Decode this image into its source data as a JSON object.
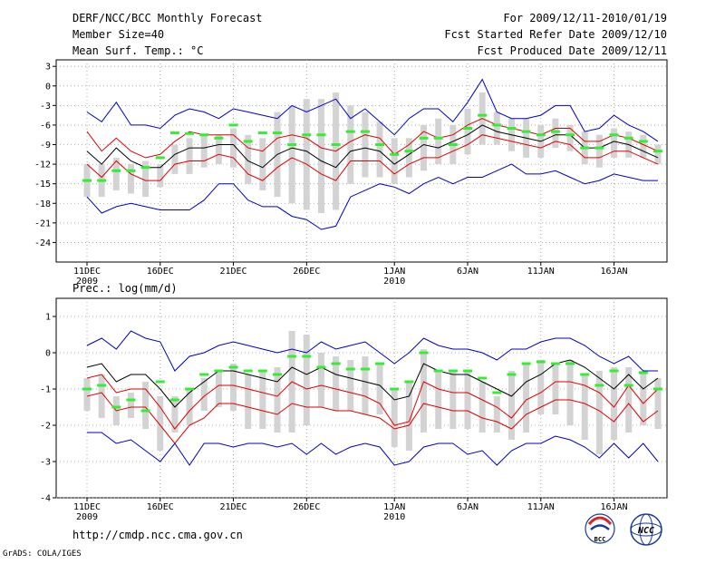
{
  "header": {
    "title": "DERF/NCC/BCC Monthly Forecast",
    "member_size": "Member Size=40",
    "variable1": "Mean Surf. Temp.: °C",
    "period": "For 2009/12/11-2010/01/19",
    "refer_date": "Fcst Started Refer Date 2009/12/10",
    "produced_date": "Fcst Produced Date 2009/12/11"
  },
  "footer": {
    "url": "http://cmdp.ncc.cma.gov.cn",
    "grads": "GrADS: COLA/IGES",
    "logo_left": "BCC",
    "logo_right": "NCC"
  },
  "colors": {
    "max_min": "#0000cc",
    "spread": "#e00000",
    "mean": "#000000",
    "box": "#d3d3d3",
    "observed": "#33ee33"
  },
  "chart_data": [
    {
      "type": "line",
      "title": "Mean Surf. Temp.: °C",
      "ylim": [
        -27,
        4
      ],
      "yticks": [
        3,
        0,
        -3,
        -6,
        -9,
        -12,
        -15,
        -18,
        -21,
        -24
      ],
      "x_day_range": [
        0,
        39
      ],
      "xticks": [
        {
          "day": 0,
          "label": "11DEC",
          "sub": "2009"
        },
        {
          "day": 5,
          "label": "16DEC",
          "sub": ""
        },
        {
          "day": 10,
          "label": "21DEC",
          "sub": ""
        },
        {
          "day": 15,
          "label": "26DEC",
          "sub": ""
        },
        {
          "day": 21,
          "label": "1JAN",
          "sub": "2010"
        },
        {
          "day": 26,
          "label": "6JAN",
          "sub": ""
        },
        {
          "day": 31,
          "label": "11JAN",
          "sub": ""
        },
        {
          "day": 36,
          "label": "16JAN",
          "sub": ""
        }
      ],
      "series": [
        {
          "name": "max",
          "values": [
            -4,
            -5.5,
            -2.5,
            -6,
            -6,
            -6.5,
            -4.5,
            -3.5,
            -4,
            -5,
            -3.5,
            -4,
            -4.5,
            -5,
            -3,
            -4,
            -3,
            -2,
            -5,
            -3.5,
            -5.5,
            -7.5,
            -5,
            -3.5,
            -3.5,
            -5.5,
            -2.5,
            1,
            -4,
            -5,
            -5,
            -4.5,
            -3,
            -3,
            -7,
            -6.5,
            -4.5,
            -6,
            -7,
            -8.5
          ]
        },
        {
          "name": "spread_upper",
          "values": [
            -7,
            -10,
            -8,
            -10,
            -11,
            -10.5,
            -8.5,
            -7,
            -7.5,
            -7.5,
            -7.5,
            -9.5,
            -10,
            -8,
            -7.5,
            -8,
            -9.5,
            -10,
            -8.5,
            -7.5,
            -8,
            -10.5,
            -9,
            -7,
            -8,
            -7.5,
            -6,
            -5,
            -6,
            -6.5,
            -7,
            -7.5,
            -6.5,
            -6.5,
            -8.5,
            -8.5,
            -7.5,
            -8,
            -9,
            -10
          ]
        },
        {
          "name": "mean",
          "values": [
            -10,
            -12,
            -9.5,
            -11.5,
            -12.5,
            -12.5,
            -10.5,
            -9.5,
            -9.5,
            -9,
            -9,
            -11.5,
            -12.5,
            -10.5,
            -9.5,
            -10,
            -11.5,
            -12.5,
            -10,
            -9.5,
            -10,
            -12,
            -10.5,
            -9,
            -9.5,
            -8.5,
            -7.5,
            -6,
            -7,
            -7.5,
            -8,
            -8.5,
            -7.5,
            -7.5,
            -9.5,
            -9.5,
            -8.5,
            -9,
            -10,
            -11
          ]
        },
        {
          "name": "spread_lower",
          "values": [
            -12,
            -14,
            -11.5,
            -13.5,
            -14.5,
            -14.5,
            -12,
            -11.5,
            -11.5,
            -10.5,
            -11,
            -13.5,
            -14.5,
            -12.5,
            -11,
            -12,
            -13.5,
            -14.5,
            -11.5,
            -11.5,
            -11.5,
            -13.5,
            -12,
            -11,
            -11,
            -10,
            -9,
            -7.5,
            -8,
            -8.5,
            -9,
            -9.5,
            -8.5,
            -9,
            -11,
            -11,
            -10,
            -10,
            -11,
            -12
          ]
        },
        {
          "name": "min",
          "values": [
            -17,
            -19.5,
            -18.5,
            -18,
            -18.5,
            -19,
            -19,
            -19,
            -17.5,
            -15,
            -15,
            -17.5,
            -18.5,
            -18.5,
            -20,
            -20.5,
            -22,
            -21.5,
            -17,
            -16,
            -15,
            -15.5,
            -16.5,
            -15,
            -14,
            -15,
            -14,
            -14,
            -13,
            -12,
            -13.5,
            -13.5,
            -13,
            -14,
            -15,
            -14.5,
            -13.5,
            -14,
            -14.5,
            -14.5
          ]
        },
        {
          "name": "box_top",
          "values": [
            -12,
            -12,
            -11,
            -12,
            -11.5,
            -12,
            -9,
            -8,
            -7.5,
            -7.5,
            -6.5,
            -7.5,
            -8,
            -4,
            -3,
            -2,
            -2,
            -1,
            -3,
            -4,
            -5.5,
            -8,
            -8,
            -6,
            -5,
            -6,
            -3.5,
            -1,
            -4,
            -5,
            -5,
            -6,
            -5,
            -6,
            -7,
            -7.5,
            -6.5,
            -7,
            -7.5,
            -9
          ]
        },
        {
          "name": "box_bottom",
          "values": [
            -17,
            -17,
            -16,
            -16.5,
            -17,
            -15.5,
            -13.5,
            -13.5,
            -12.5,
            -12,
            -12.5,
            -15,
            -16,
            -17,
            -18,
            -19,
            -19.5,
            -19,
            -15,
            -14,
            -14,
            -15,
            -14,
            -13,
            -12,
            -12,
            -10.5,
            -9,
            -9,
            -10,
            -11,
            -11,
            -9.5,
            -10,
            -12,
            -12.5,
            -11,
            -11,
            -11,
            -12
          ]
        },
        {
          "name": "observed",
          "values": [
            -14.5,
            -14.5,
            -13,
            -13,
            -12.5,
            -11,
            -7.2,
            -7.3,
            -7.5,
            -8,
            -6,
            -8.5,
            -7.2,
            -7.2,
            -9,
            -7.5,
            -7.5,
            -9,
            -7,
            -7,
            -9,
            -10.5,
            -10,
            -8,
            -8,
            -9,
            -6.5,
            -4.5,
            -6,
            -6.5,
            -7,
            -7.5,
            -7,
            -7.5,
            -9.5,
            -9.5,
            -7.5,
            -8,
            -8.5,
            -10
          ]
        }
      ]
    },
    {
      "type": "line",
      "title": "Prec.: log(mm/d)",
      "ylim": [
        -4,
        1.5
      ],
      "yticks": [
        1,
        0,
        -1,
        -2,
        -3,
        -4
      ],
      "x_day_range": [
        0,
        39
      ],
      "xticks": [
        {
          "day": 0,
          "label": "11DEC",
          "sub": "2009"
        },
        {
          "day": 5,
          "label": "16DEC",
          "sub": ""
        },
        {
          "day": 10,
          "label": "21DEC",
          "sub": ""
        },
        {
          "day": 15,
          "label": "26DEC",
          "sub": ""
        },
        {
          "day": 21,
          "label": "1JAN",
          "sub": "2010"
        },
        {
          "day": 26,
          "label": "6JAN",
          "sub": ""
        },
        {
          "day": 31,
          "label": "11JAN",
          "sub": ""
        },
        {
          "day": 36,
          "label": "16JAN",
          "sub": ""
        }
      ],
      "series": [
        {
          "name": "max",
          "values": [
            0.2,
            0.4,
            0.1,
            0.6,
            0.4,
            0.3,
            -0.5,
            -0.1,
            0,
            0.2,
            0.3,
            0.2,
            0.1,
            0,
            0.1,
            0,
            0.3,
            0.1,
            0.2,
            0.3,
            0,
            -0.3,
            0,
            0.4,
            0.2,
            0.1,
            0.1,
            0,
            -0.2,
            0.1,
            0.1,
            0.3,
            0.4,
            0.4,
            0.2,
            -0.1,
            -0.3,
            -0.1,
            -0.5,
            -0.5
          ]
        },
        {
          "name": "spread_upper",
          "values": [
            -0.7,
            -0.6,
            -1.1,
            -1,
            -1,
            -1.5,
            -2.1,
            -1.6,
            -1.2,
            -0.9,
            -0.9,
            -1,
            -1.1,
            -1.2,
            -0.8,
            -1,
            -0.9,
            -1,
            -1.1,
            -1.2,
            -1.4,
            -2,
            -1.9,
            -0.8,
            -1,
            -1.1,
            -1.1,
            -1.3,
            -1.5,
            -1.8,
            -1.3,
            -1.1,
            -0.8,
            -0.8,
            -0.9,
            -1.1,
            -1.5,
            -0.9,
            -1.4,
            -1
          ]
        },
        {
          "name": "mean",
          "values": [
            -0.4,
            -0.3,
            -0.8,
            -0.6,
            -0.6,
            -1,
            -1.5,
            -1.1,
            -0.8,
            -0.5,
            -0.5,
            -0.6,
            -0.7,
            -0.8,
            -0.4,
            -0.6,
            -0.4,
            -0.6,
            -0.7,
            -0.8,
            -0.9,
            -1.3,
            -1.2,
            -0.3,
            -0.5,
            -0.6,
            -0.6,
            -0.8,
            -1,
            -1.2,
            -0.8,
            -0.6,
            -0.3,
            -0.2,
            -0.4,
            -0.7,
            -1,
            -0.6,
            -1,
            -0.7
          ]
        },
        {
          "name": "spread_lower",
          "values": [
            -1.2,
            -1.1,
            -1.6,
            -1.5,
            -1.5,
            -2,
            -2.5,
            -2,
            -1.8,
            -1.4,
            -1.4,
            -1.5,
            -1.6,
            -1.7,
            -1.4,
            -1.5,
            -1.5,
            -1.6,
            -1.6,
            -1.7,
            -1.8,
            -2.1,
            -2,
            -1.4,
            -1.5,
            -1.6,
            -1.6,
            -1.8,
            -1.9,
            -2.1,
            -1.7,
            -1.5,
            -1.3,
            -1.3,
            -1.4,
            -1.6,
            -1.9,
            -1.4,
            -1.9,
            -1.6
          ]
        },
        {
          "name": "min",
          "values": [
            -2.2,
            -2.2,
            -2.5,
            -2.4,
            -2.7,
            -3,
            -2.5,
            -3.1,
            -2.5,
            -2.5,
            -2.6,
            -2.5,
            -2.5,
            -2.6,
            -2.5,
            -2.8,
            -2.5,
            -2.8,
            -2.6,
            -2.5,
            -2.6,
            -3.1,
            -3,
            -2.6,
            -2.5,
            -2.5,
            -2.8,
            -2.7,
            -3.1,
            -2.7,
            -2.5,
            -2.5,
            -2.3,
            -2.4,
            -2.6,
            -2.9,
            -2.5,
            -2.9,
            -2.5,
            -3
          ]
        },
        {
          "name": "box_top",
          "values": [
            -0.7,
            -0.6,
            -1.2,
            -1.1,
            -0.8,
            -1.2,
            -1.2,
            -1,
            -0.7,
            -0.5,
            -0.3,
            -0.6,
            -0.5,
            -0.4,
            0.6,
            0.5,
            0,
            -0.1,
            -0.2,
            -0.1,
            -0.3,
            -1,
            -0.8,
            0.1,
            -0.5,
            -0.5,
            -0.5,
            -0.8,
            -1.2,
            -0.5,
            -0.3,
            -0.2,
            -0.3,
            -0.2,
            -0.6,
            -0.5,
            -0.4,
            -0.4,
            -0.5,
            -0.7
          ]
        },
        {
          "name": "box_bottom",
          "values": [
            -1.6,
            -1.8,
            -2,
            -1.8,
            -2.1,
            -2.7,
            -2.2,
            -2,
            -1.6,
            -1.5,
            -1.6,
            -2.1,
            -2.1,
            -2.2,
            -2.2,
            -2,
            -1.5,
            -1.6,
            -1.6,
            -1.7,
            -1.7,
            -2.6,
            -2.7,
            -2.2,
            -2.1,
            -2.1,
            -2.1,
            -2.2,
            -2.2,
            -2.4,
            -2.2,
            -1.7,
            -1.7,
            -2,
            -2.4,
            -2.8,
            -2.4,
            -2.2,
            -2,
            -2.1
          ]
        },
        {
          "name": "observed",
          "values": [
            -1,
            -0.9,
            -1.5,
            -1.3,
            -1.6,
            -0.8,
            -1.3,
            -1,
            -0.6,
            -0.5,
            -0.4,
            -0.5,
            -0.5,
            -0.6,
            -0.1,
            -0.1,
            -0.4,
            -0.3,
            -0.45,
            -0.45,
            -0.3,
            -1,
            -0.8,
            0,
            -0.5,
            -0.5,
            -0.5,
            -0.7,
            -1.1,
            -0.6,
            -0.3,
            -0.25,
            -0.3,
            -0.3,
            -0.6,
            -0.9,
            -0.5,
            -0.9,
            -0.55,
            -1
          ]
        }
      ]
    }
  ]
}
